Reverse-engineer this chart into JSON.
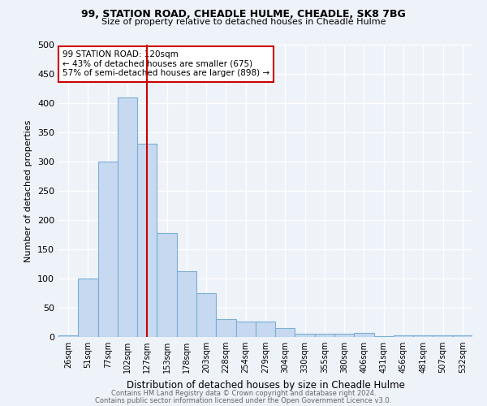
{
  "title1": "99, STATION ROAD, CHEADLE HULME, CHEADLE, SK8 7BG",
  "title2": "Size of property relative to detached houses in Cheadle Hulme",
  "xlabel": "Distribution of detached houses by size in Cheadle Hulme",
  "ylabel": "Number of detached properties",
  "bar_labels": [
    "26sqm",
    "51sqm",
    "77sqm",
    "102sqm",
    "127sqm",
    "153sqm",
    "178sqm",
    "203sqm",
    "228sqm",
    "254sqm",
    "279sqm",
    "304sqm",
    "330sqm",
    "355sqm",
    "380sqm",
    "406sqm",
    "431sqm",
    "456sqm",
    "481sqm",
    "507sqm",
    "532sqm"
  ],
  "bar_values": [
    3,
    100,
    300,
    410,
    330,
    178,
    112,
    75,
    30,
    27,
    27,
    15,
    5,
    5,
    5,
    7,
    2,
    3,
    3,
    3,
    3
  ],
  "bar_color": "#c6d9f0",
  "bar_edge_color": "#7bafd4",
  "vline_x": 4,
  "vline_color": "#cc0000",
  "annotation_text": "99 STATION ROAD: 120sqm\n← 43% of detached houses are smaller (675)\n57% of semi-detached houses are larger (898) →",
  "annotation_box_color": "#ffffff",
  "annotation_box_edge": "#cc0000",
  "ylim": [
    0,
    500
  ],
  "yticks": [
    0,
    50,
    100,
    150,
    200,
    250,
    300,
    350,
    400,
    450,
    500
  ],
  "footer1": "Contains HM Land Registry data © Crown copyright and database right 2024.",
  "footer2": "Contains public sector information licensed under the Open Government Licence v3.0.",
  "bg_color": "#eef2f9",
  "grid_color": "#ffffff"
}
